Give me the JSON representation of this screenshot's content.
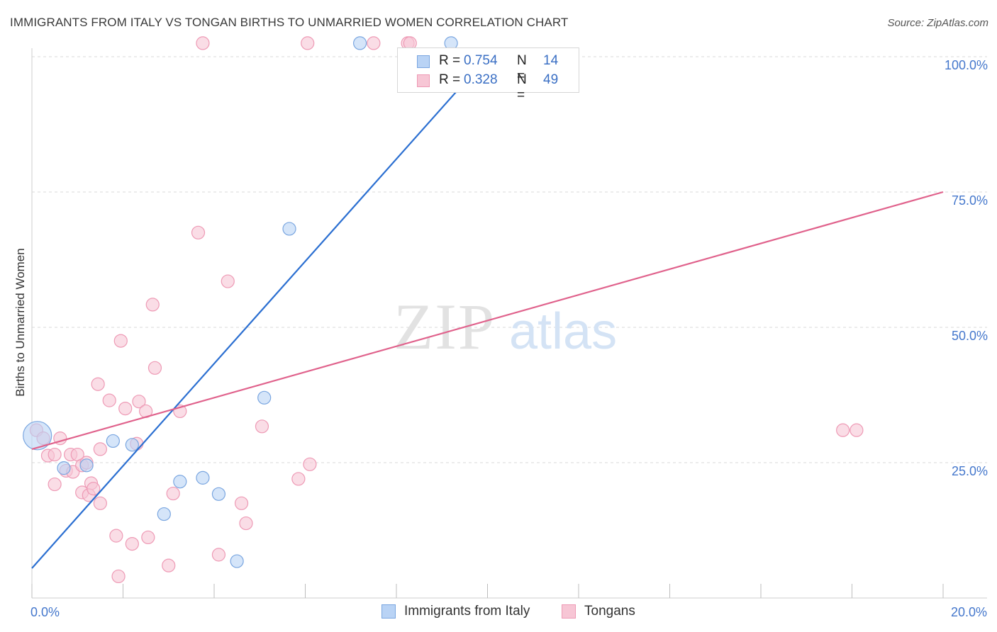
{
  "title": "IMMIGRANTS FROM ITALY VS TONGAN BIRTHS TO UNMARRIED WOMEN CORRELATION CHART",
  "source": "Source: ZipAtlas.com",
  "watermark": {
    "zip": "ZIP",
    "atlas": "atlas"
  },
  "colors": {
    "blue_fill": "#b9d3f5",
    "blue_stroke": "#7aa6e0",
    "blue_line": "#2b6fd1",
    "pink_fill": "#f7c6d5",
    "pink_stroke": "#ee9ab5",
    "pink_line": "#e0628c",
    "grid": "#d9d9d9",
    "axis_label": "#4477cc"
  },
  "legend_top": [
    {
      "r_label": "R =",
      "r_value": "0.754",
      "n_label": "N =",
      "n_value": "14"
    },
    {
      "r_label": "R =",
      "r_value": "0.328",
      "n_label": "N =",
      "n_value": "49"
    }
  ],
  "legend_bottom": [
    "Immigrants from Italy",
    "Tongans"
  ],
  "chart_data": {
    "type": "scatter",
    "title": "IMMIGRANTS FROM ITALY VS TONGAN BIRTHS TO UNMARRIED WOMEN CORRELATION CHART",
    "xlabel": "",
    "ylabel": "Births to Unmarried Women",
    "xlim": [
      0,
      20
    ],
    "ylim": [
      0,
      100
    ],
    "x_tick_labels": [
      "0.0%",
      "20.0%"
    ],
    "y_ticks": [
      25,
      50,
      75,
      100
    ],
    "y_tick_labels": [
      "25.0%",
      "50.0%",
      "75.0%",
      "100.0%"
    ],
    "grid": true,
    "series": [
      {
        "name": "Immigrants from Italy",
        "R": 0.754,
        "N": 14,
        "trend": {
          "x": [
            0,
            10.0
          ],
          "y": [
            5.5,
            100.0
          ]
        },
        "points": [
          {
            "x": 0.12,
            "y": 30.0,
            "big": true
          },
          {
            "x": 0.7,
            "y": 24.0
          },
          {
            "x": 1.2,
            "y": 24.5
          },
          {
            "x": 1.78,
            "y": 29.0
          },
          {
            "x": 2.2,
            "y": 28.3
          },
          {
            "x": 2.9,
            "y": 15.5
          },
          {
            "x": 3.25,
            "y": 21.5
          },
          {
            "x": 3.75,
            "y": 22.2
          },
          {
            "x": 4.1,
            "y": 19.2
          },
          {
            "x": 4.5,
            "y": 6.8
          },
          {
            "x": 5.1,
            "y": 37.0
          },
          {
            "x": 5.65,
            "y": 68.2
          },
          {
            "x": 7.2,
            "y": 102.5
          },
          {
            "x": 9.2,
            "y": 102.5
          }
        ]
      },
      {
        "name": "Tongans",
        "R": 0.328,
        "N": 49,
        "trend": {
          "x": [
            0,
            20.0
          ],
          "y": [
            27.5,
            75.0
          ]
        },
        "points": [
          {
            "x": 0.1,
            "y": 31.0
          },
          {
            "x": 0.25,
            "y": 29.5
          },
          {
            "x": 0.35,
            "y": 26.3
          },
          {
            "x": 0.5,
            "y": 26.5
          },
          {
            "x": 0.62,
            "y": 29.5
          },
          {
            "x": 0.5,
            "y": 21.0
          },
          {
            "x": 0.75,
            "y": 23.5
          },
          {
            "x": 0.9,
            "y": 23.3
          },
          {
            "x": 0.85,
            "y": 26.5
          },
          {
            "x": 1.0,
            "y": 26.5
          },
          {
            "x": 1.1,
            "y": 24.5
          },
          {
            "x": 1.2,
            "y": 25.0
          },
          {
            "x": 1.1,
            "y": 19.5
          },
          {
            "x": 1.3,
            "y": 21.2
          },
          {
            "x": 1.25,
            "y": 19.0
          },
          {
            "x": 1.35,
            "y": 20.2
          },
          {
            "x": 1.5,
            "y": 17.5
          },
          {
            "x": 1.5,
            "y": 27.5
          },
          {
            "x": 1.45,
            "y": 39.5
          },
          {
            "x": 1.7,
            "y": 36.5
          },
          {
            "x": 1.85,
            "y": 11.5
          },
          {
            "x": 1.9,
            "y": 4.0
          },
          {
            "x": 1.95,
            "y": 47.5
          },
          {
            "x": 2.05,
            "y": 35.0
          },
          {
            "x": 2.2,
            "y": 10.0
          },
          {
            "x": 2.3,
            "y": 28.5
          },
          {
            "x": 2.35,
            "y": 36.3
          },
          {
            "x": 2.5,
            "y": 34.5
          },
          {
            "x": 2.55,
            "y": 11.2
          },
          {
            "x": 2.65,
            "y": 54.2
          },
          {
            "x": 2.7,
            "y": 42.5
          },
          {
            "x": 3.0,
            "y": 6.0
          },
          {
            "x": 3.1,
            "y": 19.3
          },
          {
            "x": 3.25,
            "y": 34.5
          },
          {
            "x": 3.65,
            "y": 67.5
          },
          {
            "x": 3.75,
            "y": 102.5
          },
          {
            "x": 4.1,
            "y": 8.0
          },
          {
            "x": 4.3,
            "y": 58.5
          },
          {
            "x": 4.6,
            "y": 17.5
          },
          {
            "x": 4.7,
            "y": 13.8
          },
          {
            "x": 5.05,
            "y": 31.7
          },
          {
            "x": 5.85,
            "y": 22.0
          },
          {
            "x": 6.1,
            "y": 24.7
          },
          {
            "x": 6.05,
            "y": 102.5
          },
          {
            "x": 7.5,
            "y": 102.5
          },
          {
            "x": 8.25,
            "y": 102.5
          },
          {
            "x": 8.3,
            "y": 102.5
          },
          {
            "x": 17.8,
            "y": 31.0
          },
          {
            "x": 18.1,
            "y": 31.0
          }
        ]
      }
    ]
  }
}
